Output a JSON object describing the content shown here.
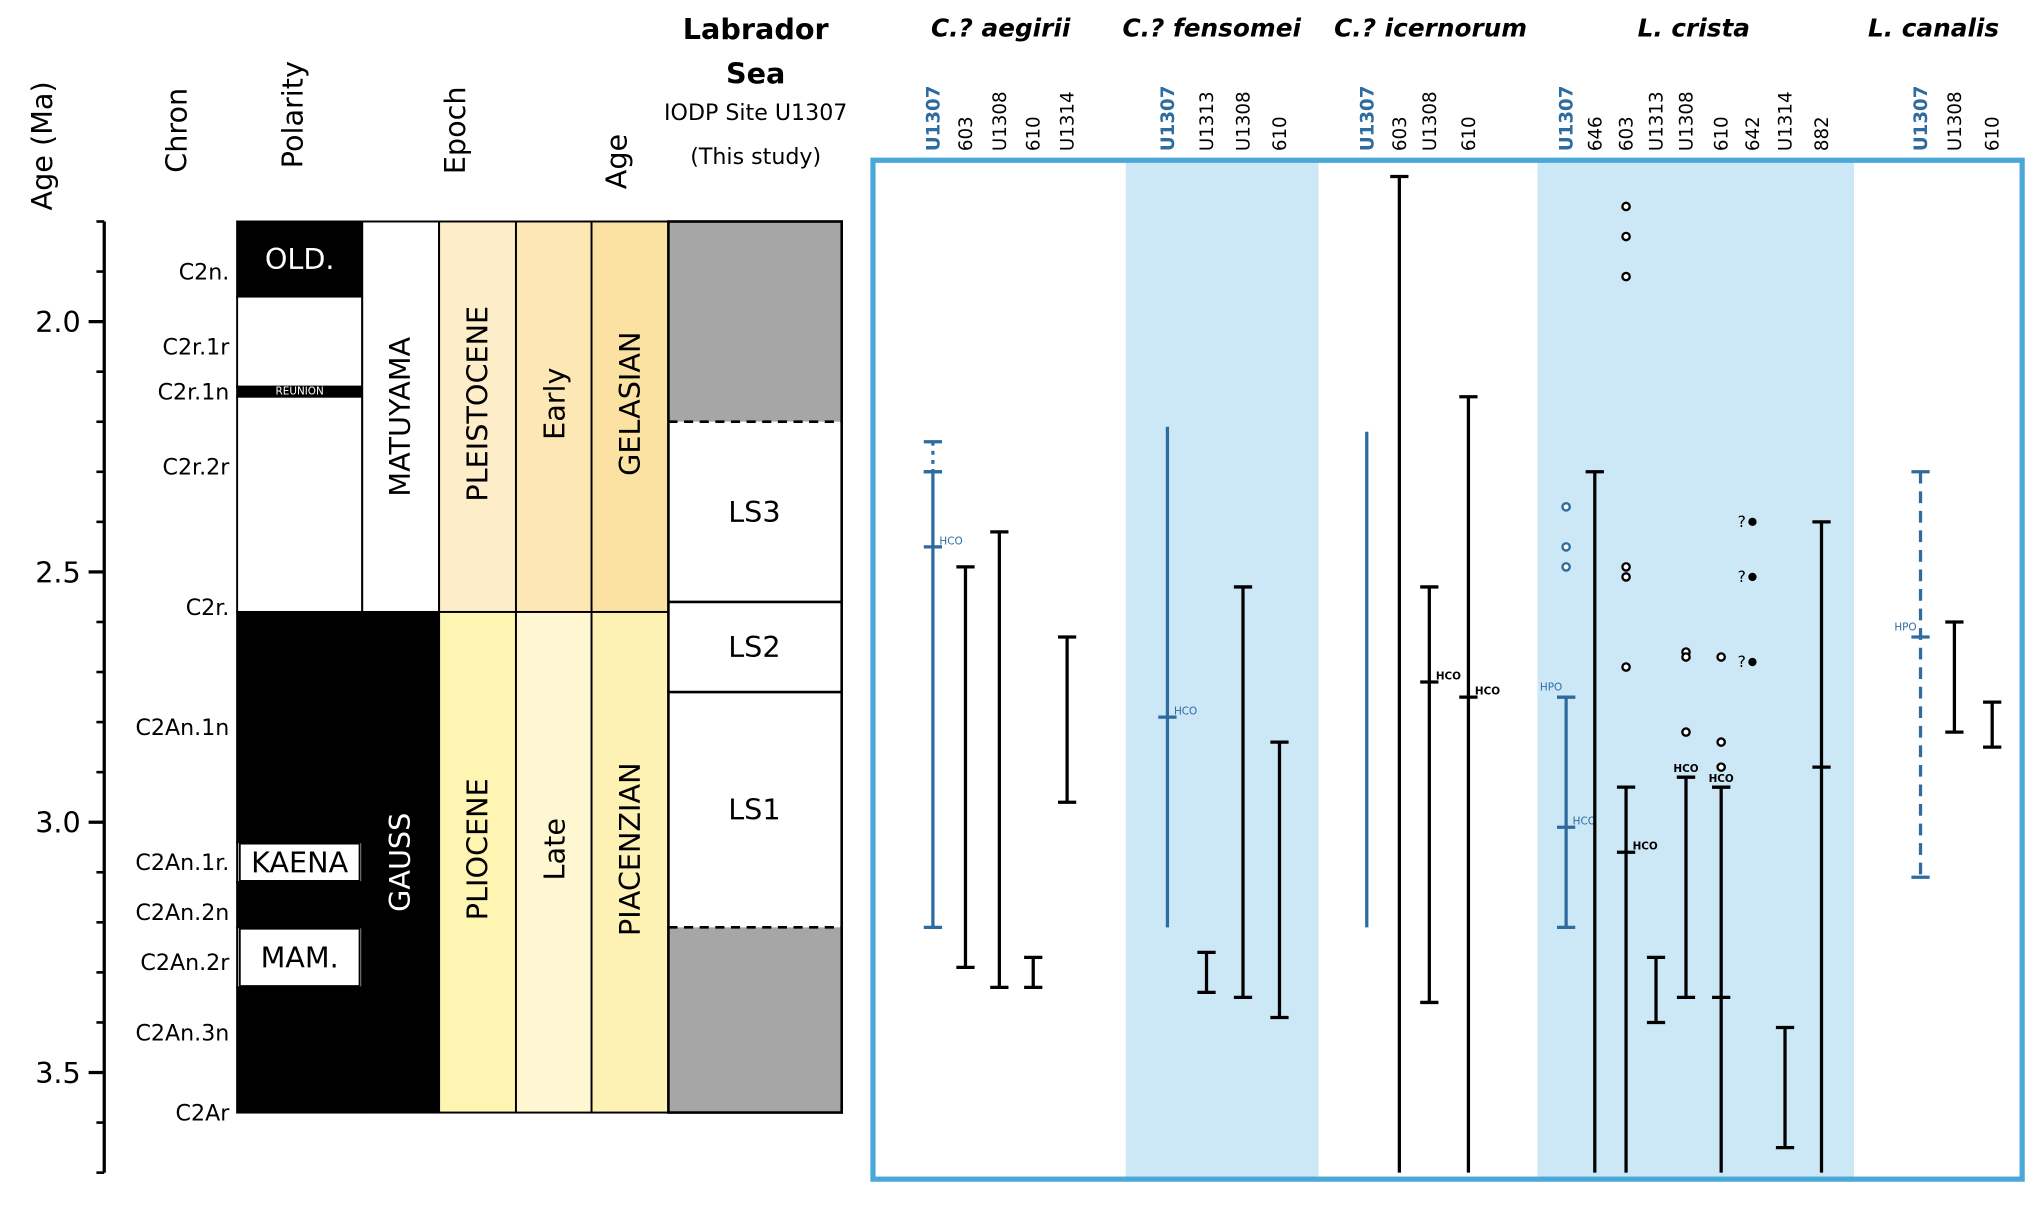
{
  "header": {
    "age_label": "Age (Ma)",
    "chron": "Chron",
    "polarity": "Polarity",
    "epoch": "Epoch",
    "age": "Age",
    "site_title": [
      "Labrador",
      "Sea"
    ],
    "site_subtitle": "IODP Site U1307",
    "site_note": "(This study)"
  },
  "age_axis": {
    "lim": [
      1.8,
      3.7
    ],
    "ticks": [
      {
        "value": 2,
        "label": "2.0"
      },
      {
        "value": 2.5,
        "label": "2.5"
      },
      {
        "value": 3,
        "label": "3.0"
      },
      {
        "value": 3.5,
        "label": "3.5"
      }
    ],
    "minor_ticks": [
      1.8,
      1.9,
      2.0,
      2.1,
      2.2,
      2.3,
      2.4,
      2.5,
      2.6,
      2.7,
      2.8,
      2.9,
      3.0,
      3.1,
      3.2,
      3.3,
      3.4,
      3.5,
      3.6,
      3.7
    ]
  },
  "chrons": [
    {
      "label": "C2n.",
      "age": 1.9
    },
    {
      "label": "C2r.1r",
      "age": 2.05
    },
    {
      "label": "C2r.1n",
      "age": 2.14
    },
    {
      "label": "C2r.2r",
      "age": 2.29
    },
    {
      "label": "C2r.",
      "age": 2.57
    },
    {
      "label": "C2An.1n",
      "age": 2.81
    },
    {
      "label": "C2An.1r.",
      "age": 3.08
    },
    {
      "label": "C2An.2n",
      "age": 3.18
    },
    {
      "label": "C2An.2r",
      "age": 3.28
    },
    {
      "label": "C2An.3n",
      "age": 3.42
    },
    {
      "label": "C2Ar",
      "age": 3.58
    }
  ],
  "polarity": [
    {
      "top": 1.8,
      "base": 1.95,
      "normal": true,
      "label": "OLD."
    },
    {
      "top": 1.95,
      "base": 2.13,
      "normal": false
    },
    {
      "top": 2.13,
      "base": 2.15,
      "normal": true,
      "label": "REUNION"
    },
    {
      "top": 2.15,
      "base": 2.58,
      "normal": false
    },
    {
      "top": 2.58,
      "base": 3.04,
      "normal": true
    },
    {
      "top": 3.04,
      "base": 3.12,
      "normal": false,
      "label": "KAENA"
    },
    {
      "top": 3.12,
      "base": 3.21,
      "normal": true
    },
    {
      "top": 3.21,
      "base": 3.33,
      "normal": false,
      "label": "MAM."
    },
    {
      "top": 3.33,
      "base": 3.58,
      "normal": true
    }
  ],
  "magnetic": [
    {
      "label": "MATUYAMA",
      "top": 1.8,
      "base": 2.58,
      "normal": false
    },
    {
      "label": "GAUSS",
      "top": 2.58,
      "base": 3.58,
      "normal": true
    }
  ],
  "epochs": [
    {
      "label": "PLEISTOCENE",
      "top": 1.8,
      "base": 2.58,
      "color": "#fdedc9"
    },
    {
      "label": "PLIOCENE",
      "top": 2.58,
      "base": 3.58,
      "color": "#fff5b3"
    }
  ],
  "subepochs": [
    {
      "label": "Early",
      "top": 1.8,
      "base": 2.58,
      "color": "#fde7b5"
    },
    {
      "label": "Late",
      "top": 2.58,
      "base": 3.58,
      "color": "#fef7d2"
    }
  ],
  "stages": [
    {
      "label": "GELASIAN",
      "top": 1.8,
      "base": 2.58,
      "color": "#fce2a2"
    },
    {
      "label": "PIACENZIAN",
      "top": 2.58,
      "base": 3.58,
      "color": "#fef1b4"
    }
  ],
  "units": [
    {
      "top": 1.8,
      "base": 2.2,
      "color": "#a6a6a6"
    },
    {
      "label": "LS3",
      "top": 2.2,
      "base": 2.56,
      "color": "#ffffff"
    },
    {
      "label": "LS2",
      "top": 2.56,
      "base": 2.74,
      "color": "#ffffff"
    },
    {
      "label": "LS1",
      "top": 2.74,
      "base": 3.21,
      "color": "#ffffff"
    },
    {
      "top": 3.21,
      "base": 3.58,
      "color": "#a6a6a6"
    }
  ],
  "panel": {
    "border": "#4aa8d8",
    "band": "#cce8f6",
    "this_study_color": "#2e6b9e"
  },
  "species": [
    {
      "name": "C.? aegirii",
      "shaded": false,
      "sites": [
        {
          "name": "U1307",
          "this_study": true,
          "ranges": [
            {
              "top": 2.24,
              "base": 2.3,
              "style": "dotted",
              "caps": true
            },
            {
              "top": 2.3,
              "base": 3.21,
              "style": "solid",
              "caps": true
            }
          ],
          "events": [
            {
              "label": "HCO",
              "age": 2.45
            }
          ]
        },
        {
          "name": "603",
          "ranges": [
            {
              "top": 2.49,
              "base": 3.29,
              "style": "solid",
              "caps": true
            }
          ]
        },
        {
          "name": "U1308",
          "ranges": [
            {
              "top": 2.42,
              "base": 3.33,
              "style": "solid",
              "caps": true
            }
          ]
        },
        {
          "name": "610",
          "ranges": [
            {
              "top": 3.27,
              "base": 3.33,
              "style": "solid",
              "caps": true
            }
          ]
        },
        {
          "name": "U1314",
          "ranges": [
            {
              "top": 2.63,
              "base": 2.96,
              "style": "solid",
              "caps": true
            }
          ]
        }
      ]
    },
    {
      "name": "C.? fensomei",
      "shaded": true,
      "sites": [
        {
          "name": "U1307",
          "this_study": true,
          "ranges": [
            {
              "top": 2.21,
              "base": 3.21,
              "style": "solid",
              "caps": false
            }
          ],
          "events": [
            {
              "label": "HCO",
              "age": 2.79
            }
          ]
        },
        {
          "name": "U1313",
          "ranges": [
            {
              "top": 3.26,
              "base": 3.34,
              "style": "solid",
              "caps": true
            }
          ]
        },
        {
          "name": "U1308",
          "ranges": [
            {
              "top": 2.53,
              "base": 3.35,
              "style": "solid",
              "caps": true
            }
          ]
        },
        {
          "name": "610",
          "ranges": [
            {
              "top": 2.84,
              "base": 3.39,
              "style": "solid",
              "caps": true
            }
          ]
        }
      ]
    },
    {
      "name": "C.? icernorum",
      "shaded": false,
      "sites": [
        {
          "name": "U1307",
          "this_study": true,
          "ranges": [
            {
              "top": 2.22,
              "base": 3.21,
              "style": "solid",
              "caps": false
            }
          ]
        },
        {
          "name": "603",
          "ranges": [
            {
              "top": 1.71,
              "base": 3.7,
              "style": "solid",
              "caps": true
            }
          ]
        },
        {
          "name": "U1308",
          "ranges": [
            {
              "top": 2.53,
              "base": 3.36,
              "style": "solid",
              "caps": true
            }
          ],
          "events": [
            {
              "label": "HCO",
              "age": 2.72
            }
          ]
        },
        {
          "name": "610",
          "ranges": [
            {
              "top": 2.15,
              "base": 3.7,
              "style": "solid",
              "caps": true
            }
          ],
          "events": [
            {
              "label": "HCO",
              "age": 2.75
            }
          ]
        }
      ]
    },
    {
      "name": "L. crista",
      "shaded": true,
      "sites": [
        {
          "name": "U1307",
          "this_study": true,
          "ranges": [
            {
              "top": 2.75,
              "base": 3.21,
              "style": "solid",
              "caps": true
            }
          ],
          "events": [
            {
              "label": "HPO",
              "age": 2.75,
              "side": "left"
            },
            {
              "label": "HCO",
              "age": 3.01
            }
          ],
          "occurrences": [
            2.37,
            2.45,
            2.49
          ]
        },
        {
          "name": "646",
          "ranges": [
            {
              "top": 2.3,
              "base": 3.7,
              "style": "solid",
              "caps": true
            }
          ]
        },
        {
          "name": "603",
          "ranges": [
            {
              "top": 2.93,
              "base": 3.7,
              "style": "solid",
              "caps": true
            }
          ],
          "events": [
            {
              "label": "HCO",
              "age": 3.06
            }
          ],
          "occurrences": [
            1.77,
            1.83,
            1.91,
            2.49,
            2.51,
            2.69
          ]
        },
        {
          "name": "U1313",
          "ranges": [
            {
              "top": 3.27,
              "base": 3.4,
              "style": "solid",
              "caps": true
            }
          ]
        },
        {
          "name": "U1308",
          "ranges": [
            {
              "top": 2.91,
              "base": 3.35,
              "style": "solid",
              "caps": true
            }
          ],
          "events": [
            {
              "label": "HCO",
              "age": 2.91,
              "side": "top"
            }
          ],
          "occurrences": [
            2.66,
            2.67,
            2.82
          ]
        },
        {
          "name": "610",
          "ranges": [
            {
              "top": 2.93,
              "base": 3.7,
              "style": "solid",
              "caps": true
            }
          ],
          "events": [
            {
              "label": "HCO",
              "age": 2.93,
              "side": "top"
            }
          ],
          "marks": [
            3.35
          ],
          "occurrences": [
            2.67,
            2.84,
            2.89
          ]
        },
        {
          "name": "642",
          "queried": [
            {
              "age": 2.4,
              "label": "?"
            },
            {
              "age": 2.51,
              "label": "?"
            },
            {
              "age": 2.68,
              "label": "?"
            }
          ]
        },
        {
          "name": "U1314",
          "ranges": [
            {
              "top": 3.41,
              "base": 3.65,
              "style": "solid",
              "caps": true
            }
          ]
        },
        {
          "name": "882",
          "ranges": [
            {
              "top": 2.4,
              "base": 3.7,
              "style": "solid",
              "caps": true
            }
          ],
          "marks": [
            2.89
          ]
        }
      ]
    },
    {
      "name": "L. canalis",
      "shaded": false,
      "sites": [
        {
          "name": "U1307",
          "this_study": true,
          "ranges": [
            {
              "top": 2.3,
              "base": 3.11,
              "style": "dashed",
              "caps": true
            }
          ],
          "events": [
            {
              "label": "HPO",
              "age": 2.63,
              "side": "left"
            }
          ]
        },
        {
          "name": "U1308",
          "ranges": [
            {
              "top": 2.6,
              "base": 2.82,
              "style": "solid",
              "caps": true
            }
          ]
        },
        {
          "name": "610",
          "ranges": [
            {
              "top": 2.76,
              "base": 2.85,
              "style": "solid",
              "caps": true
            }
          ]
        }
      ]
    }
  ]
}
